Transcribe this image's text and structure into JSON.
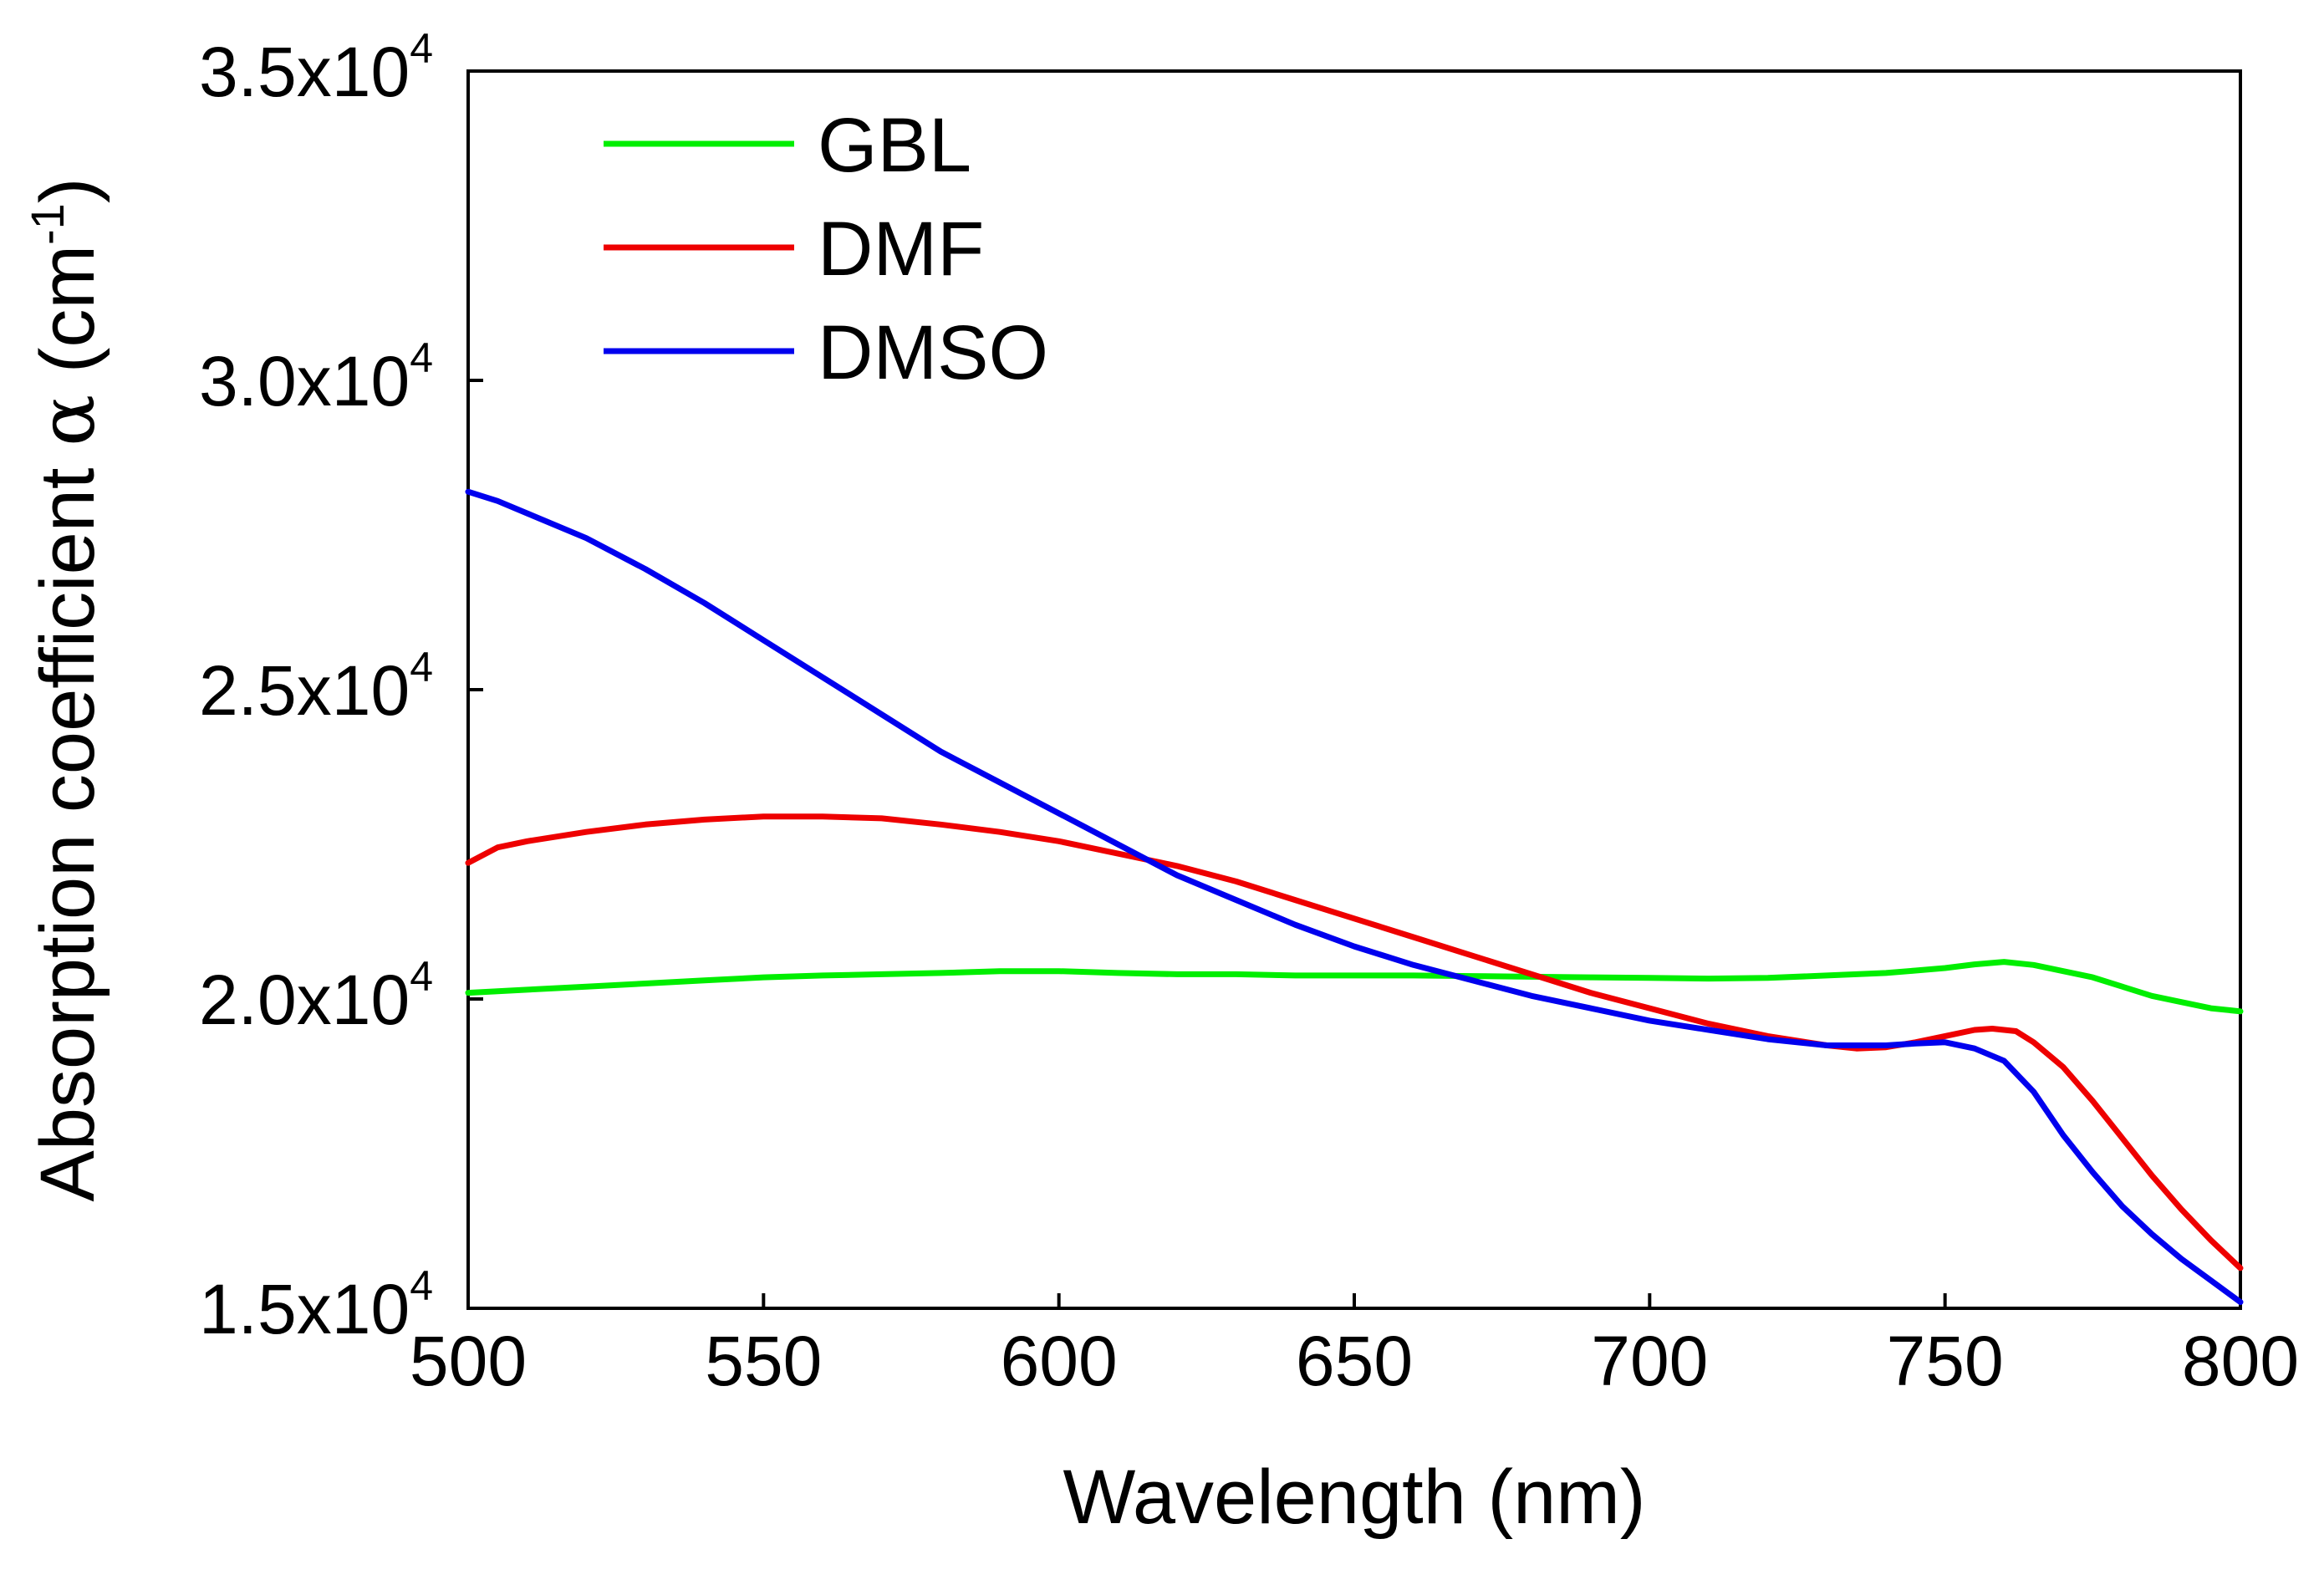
{
  "chart_data": {
    "type": "line",
    "xlabel": "Wavelength (nm)",
    "ylabel": {
      "main": "Absorption coefficient ",
      "symbol": "α",
      "unit_open": " (cm",
      "unit_exp": "-1",
      "unit_close": ")"
    },
    "xlim": [
      500,
      800
    ],
    "ylim": [
      15000,
      35000
    ],
    "x_ticks": [
      {
        "value": 500,
        "label": "500"
      },
      {
        "value": 550,
        "label": "550"
      },
      {
        "value": 600,
        "label": "600"
      },
      {
        "value": 650,
        "label": "650"
      },
      {
        "value": 700,
        "label": "700"
      },
      {
        "value": 750,
        "label": "750"
      },
      {
        "value": 800,
        "label": "800"
      }
    ],
    "y_ticks": [
      {
        "value": 15000,
        "mantissa": "1.5x10",
        "exponent": "4"
      },
      {
        "value": 20000,
        "mantissa": "2.0x10",
        "exponent": "4"
      },
      {
        "value": 25000,
        "mantissa": "2.5x10",
        "exponent": "4"
      },
      {
        "value": 30000,
        "mantissa": "3.0x10",
        "exponent": "4"
      },
      {
        "value": 35000,
        "mantissa": "3.5x10",
        "exponent": "4"
      }
    ],
    "legend_position": "top-left",
    "grid": false,
    "series": [
      {
        "name": "GBL",
        "color": "#00ee00",
        "x": [
          500,
          510,
          520,
          530,
          540,
          550,
          560,
          570,
          580,
          590,
          600,
          610,
          620,
          630,
          640,
          650,
          660,
          670,
          680,
          690,
          700,
          710,
          720,
          730,
          740,
          745,
          750,
          755,
          760,
          765,
          770,
          775,
          780,
          785,
          790,
          795,
          800
        ],
        "values": [
          20100,
          20150,
          20200,
          20250,
          20300,
          20350,
          20380,
          20400,
          20420,
          20450,
          20450,
          20420,
          20400,
          20400,
          20380,
          20380,
          20380,
          20370,
          20360,
          20350,
          20340,
          20330,
          20340,
          20380,
          20420,
          20460,
          20500,
          20560,
          20600,
          20550,
          20450,
          20350,
          20200,
          20050,
          19950,
          19850,
          19800
        ]
      },
      {
        "name": "DMF",
        "color": "#ee0000",
        "x": [
          500,
          505,
          510,
          520,
          530,
          540,
          550,
          560,
          570,
          580,
          590,
          600,
          610,
          620,
          630,
          640,
          650,
          660,
          670,
          680,
          690,
          700,
          710,
          720,
          730,
          735,
          740,
          745,
          750,
          755,
          758,
          762,
          765,
          770,
          775,
          780,
          785,
          790,
          795,
          800
        ],
        "values": [
          22200,
          22450,
          22550,
          22700,
          22820,
          22900,
          22950,
          22950,
          22920,
          22820,
          22700,
          22550,
          22350,
          22150,
          21900,
          21600,
          21300,
          21000,
          20700,
          20400,
          20100,
          19850,
          19600,
          19400,
          19250,
          19200,
          19220,
          19300,
          19400,
          19500,
          19520,
          19480,
          19300,
          18900,
          18350,
          17750,
          17150,
          16600,
          16100,
          15650
        ]
      },
      {
        "name": "DMSO",
        "color": "#0000ee",
        "x": [
          500,
          505,
          510,
          520,
          530,
          540,
          550,
          560,
          570,
          580,
          590,
          600,
          610,
          620,
          630,
          640,
          650,
          660,
          670,
          680,
          690,
          700,
          710,
          720,
          730,
          740,
          745,
          750,
          755,
          760,
          765,
          770,
          775,
          780,
          785,
          790,
          795,
          800
        ],
        "values": [
          28200,
          28050,
          27850,
          27450,
          26950,
          26400,
          25800,
          25200,
          24600,
          24000,
          23500,
          23000,
          22500,
          22000,
          21600,
          21200,
          20850,
          20550,
          20300,
          20050,
          19850,
          19650,
          19500,
          19350,
          19250,
          19250,
          19280,
          19300,
          19200,
          19000,
          18500,
          17800,
          17200,
          16650,
          16200,
          15800,
          15450,
          15100
        ]
      }
    ]
  }
}
